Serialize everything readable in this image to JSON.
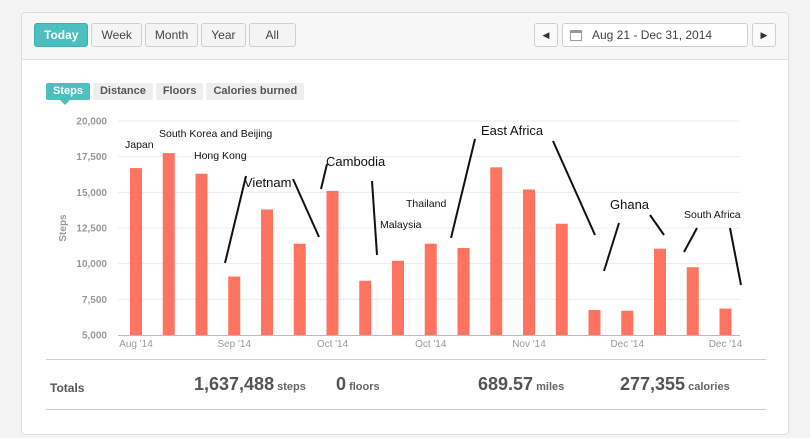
{
  "range_tabs": [
    "Today",
    "Week",
    "Month",
    "Year",
    "All"
  ],
  "active_range": "Today",
  "date_range": "Aug 21 - Dec 31, 2014",
  "metric_tabs": [
    "Steps",
    "Distance",
    "Floors",
    "Calories burned"
  ],
  "active_metric": "Steps",
  "colors": {
    "accent": "#4cbfbf",
    "bar": "#ff7361"
  },
  "totals": {
    "label": "Totals",
    "steps": {
      "value": "1,637,488",
      "unit": "steps"
    },
    "floors": {
      "value": "0",
      "unit": "floors"
    },
    "miles": {
      "value": "689.57",
      "unit": "miles"
    },
    "calories": {
      "value": "277,355",
      "unit": "calories"
    }
  },
  "chart_data": {
    "type": "bar",
    "title": "",
    "xlabel": "",
    "ylabel": "Steps",
    "ylim": [
      5000,
      20000
    ],
    "yticks": [
      5000,
      7500,
      10000,
      12500,
      15000,
      17500,
      20000
    ],
    "ytick_labels": [
      "5,000",
      "7,500",
      "10,000",
      "12,500",
      "15,000",
      "17,500",
      "20,000"
    ],
    "xticks": [
      {
        "label": "Aug '14",
        "at": 0
      },
      {
        "label": "Sep '14",
        "at": 3
      },
      {
        "label": "Oct '14",
        "at": 6
      },
      {
        "label": "Oct '14",
        "at": 9
      },
      {
        "label": "Nov '14",
        "at": 12
      },
      {
        "label": "Dec '14",
        "at": 15
      },
      {
        "label": "Dec '14",
        "at": 18
      }
    ],
    "values": [
      16700,
      17750,
      16300,
      9100,
      13800,
      11400,
      15100,
      8800,
      10200,
      11400,
      11100,
      16750,
      15200,
      12800,
      6750,
      6700,
      11050,
      9750,
      6850
    ],
    "grid": true,
    "annotations": [
      {
        "text": "Japan",
        "size": "small"
      },
      {
        "text": "South Korea and Beijing",
        "size": "small"
      },
      {
        "text": "Hong Kong",
        "size": "small"
      },
      {
        "text": "Vietnam",
        "size": "large"
      },
      {
        "text": "Cambodia",
        "size": "large"
      },
      {
        "text": "Malaysia",
        "size": "small"
      },
      {
        "text": "Thailand",
        "size": "small"
      },
      {
        "text": "East Africa",
        "size": "large"
      },
      {
        "text": "Ghana",
        "size": "large"
      },
      {
        "text": "South Africa",
        "size": "small"
      }
    ]
  }
}
